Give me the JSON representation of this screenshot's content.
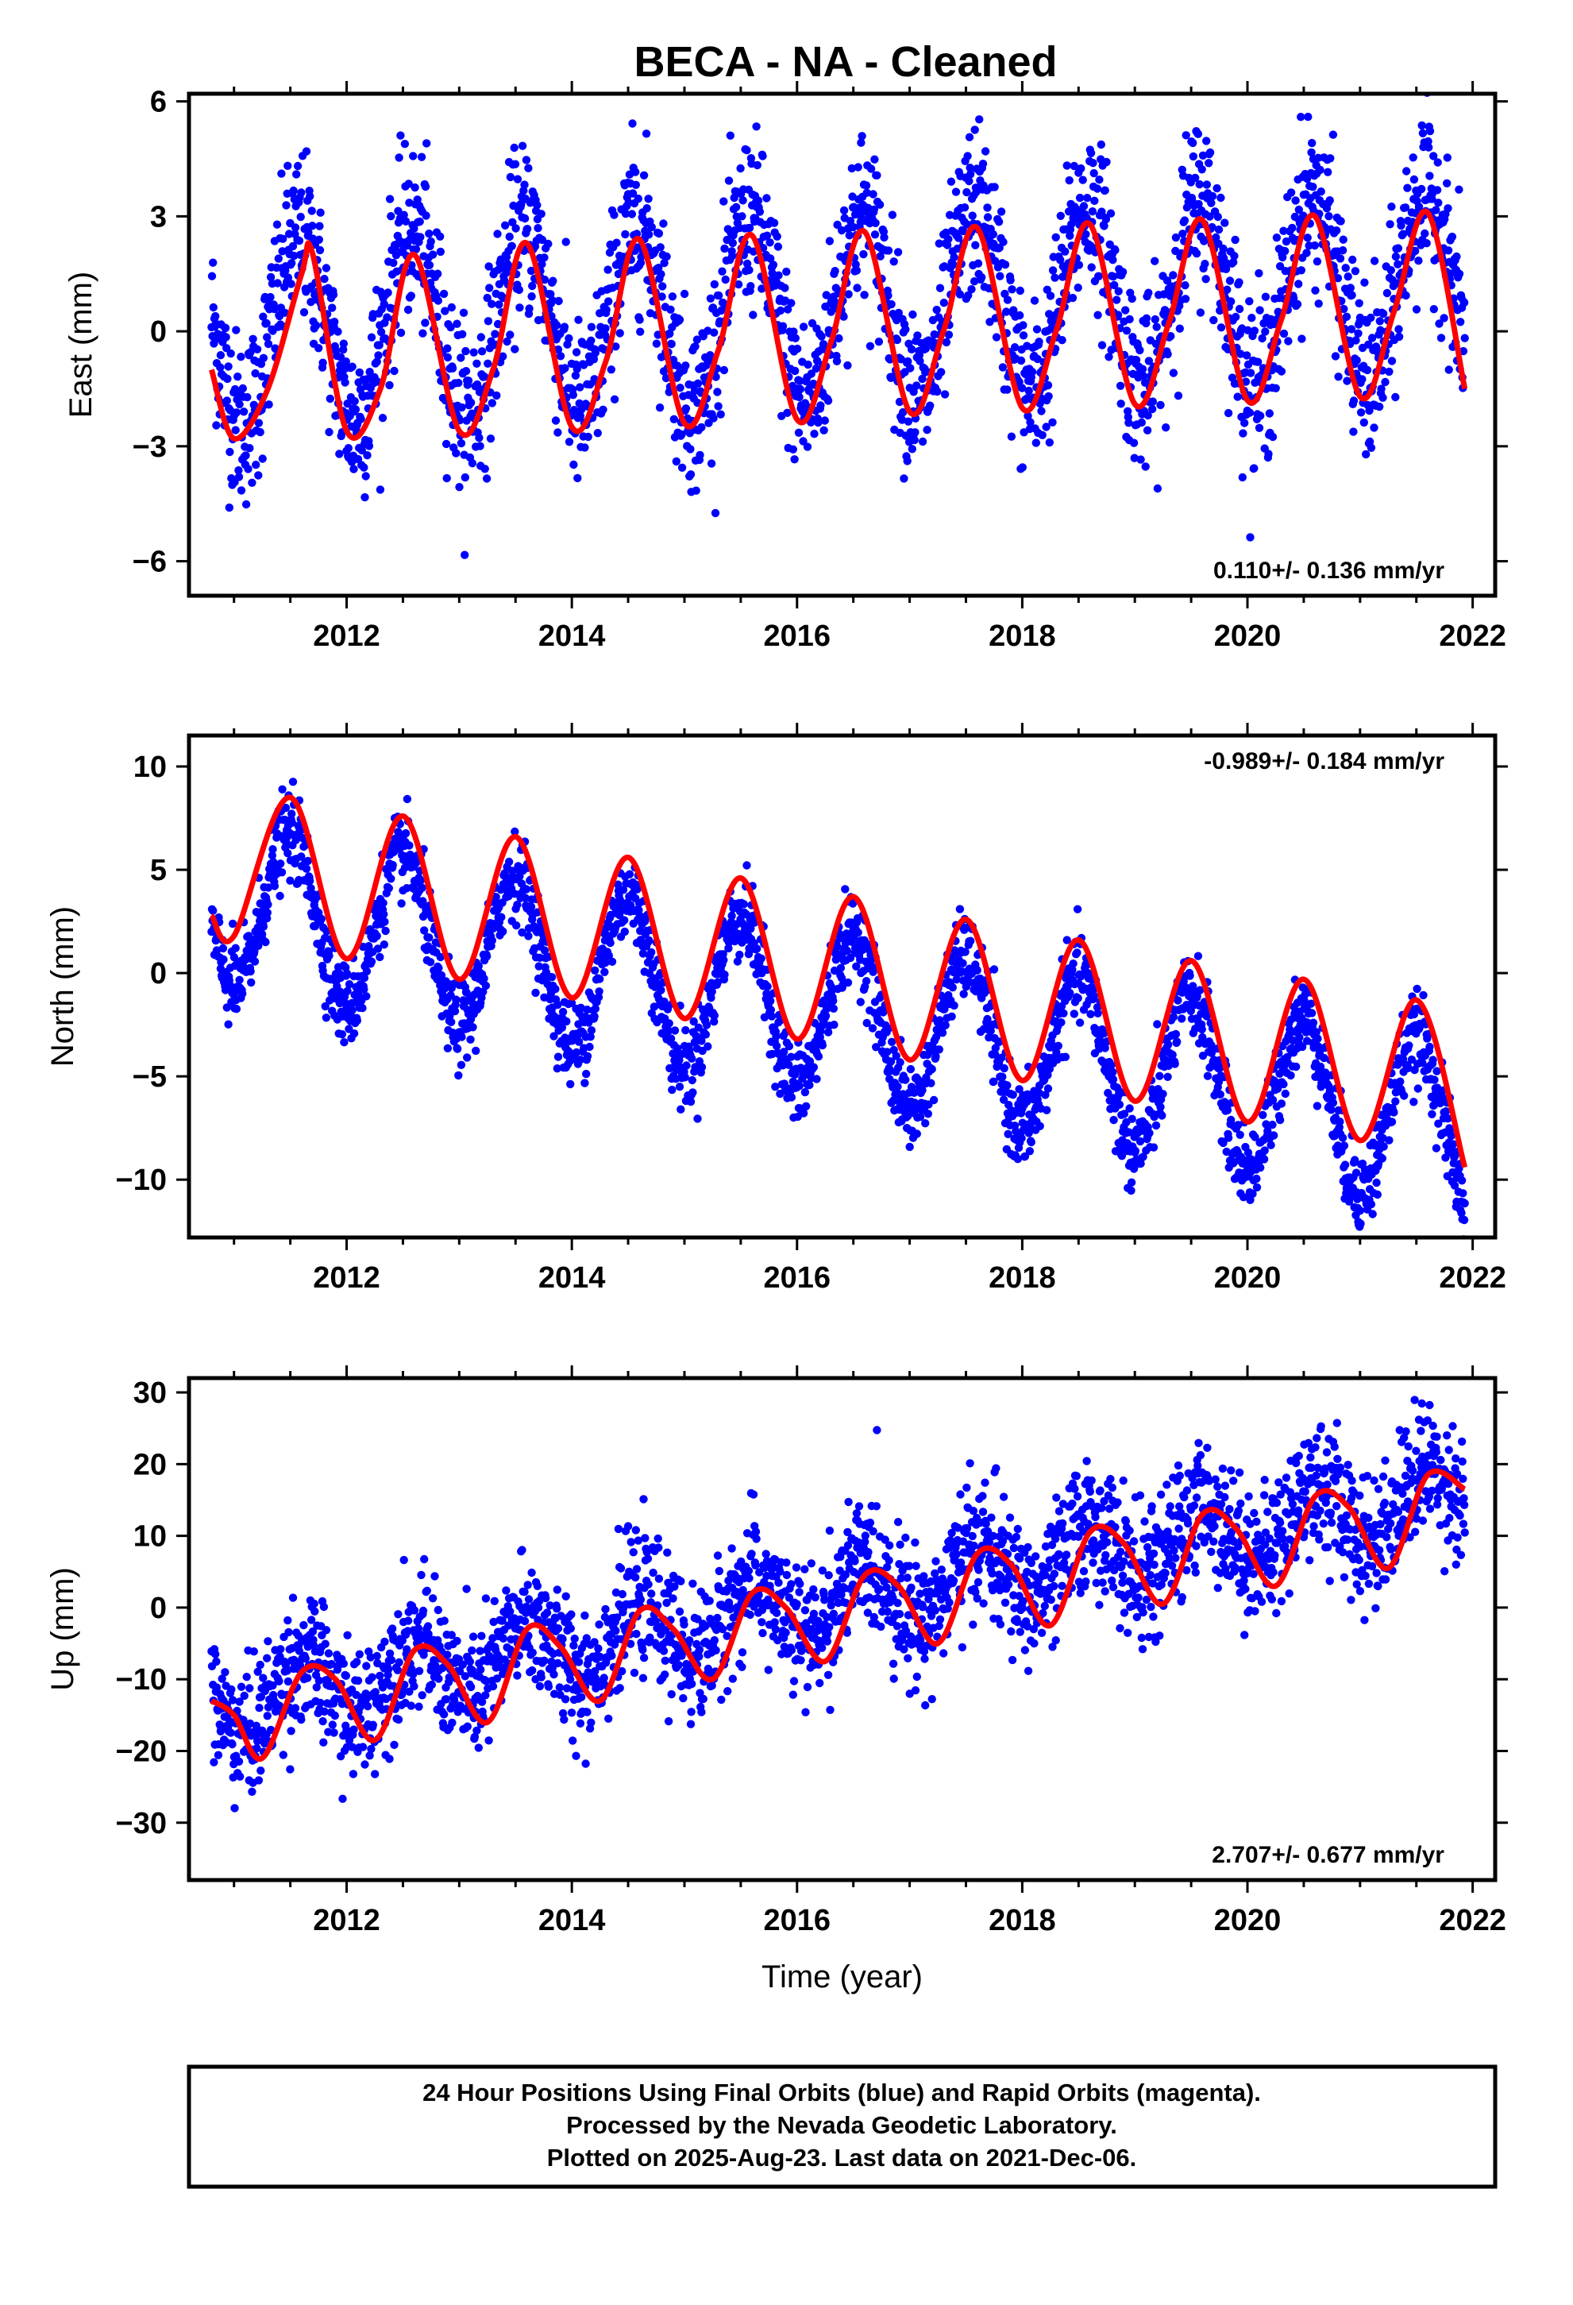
{
  "title": "BECA  - NA - Cleaned",
  "footer": {
    "line1": "24 Hour Positions Using Final Orbits (blue) and Rapid Orbits (magenta).",
    "line2": "Processed by the Nevada Geodetic Laboratory.",
    "line3": "Plotted on 2025-Aug-23. Last data on 2021-Dec-06."
  },
  "colors": {
    "points": "#0000ff",
    "fit": "#ff0000",
    "frame": "#000000"
  },
  "chart_data": [
    {
      "type": "scatter",
      "ylabel": "East (mm)",
      "xlabel": "",
      "rate_text": "0.110+/- 0.136 mm/yr",
      "rate_position": "bottom-right",
      "xlim": [
        2010.6,
        2022.2
      ],
      "ylim": [
        -6.9,
        6.2
      ],
      "xticks": [
        2012,
        2014,
        2016,
        2018,
        2020,
        2022
      ],
      "yticks": [
        -6,
        -3,
        0,
        3,
        6
      ],
      "ytick_labels": [
        "−6",
        "−3",
        "0",
        "3",
        "6"
      ],
      "data_start": 2010.8,
      "data_end": 2021.93,
      "model": {
        "trend_mm_per_yr": 0.11,
        "offset_mm": 0.0,
        "annual_amplitude_mm": 2.4,
        "annual_peak_year_fraction": 0.58,
        "scatter_sd_mm": 1.1
      },
      "fit_points": [
        [
          2010.8,
          -1.0
        ],
        [
          2011.0,
          -2.8
        ],
        [
          2011.3,
          -1.5
        ],
        [
          2011.6,
          1.5
        ],
        [
          2011.7,
          2.0
        ],
        [
          2012.0,
          -2.6
        ],
        [
          2012.3,
          -1.5
        ],
        [
          2012.6,
          2.0
        ],
        [
          2013.0,
          -2.6
        ],
        [
          2013.3,
          -1.0
        ],
        [
          2013.6,
          2.3
        ],
        [
          2014.0,
          -2.5
        ],
        [
          2014.3,
          -0.8
        ],
        [
          2014.6,
          2.4
        ],
        [
          2015.0,
          -2.4
        ],
        [
          2015.3,
          -0.5
        ],
        [
          2015.6,
          2.5
        ],
        [
          2016.0,
          -2.3
        ],
        [
          2016.3,
          -0.3
        ],
        [
          2016.6,
          2.6
        ],
        [
          2017.0,
          -2.1
        ],
        [
          2017.3,
          0.0
        ],
        [
          2017.6,
          2.7
        ],
        [
          2018.0,
          -2.0
        ],
        [
          2018.3,
          0.0
        ],
        [
          2018.6,
          2.8
        ],
        [
          2019.0,
          -1.9
        ],
        [
          2019.3,
          0.2
        ],
        [
          2019.6,
          2.9
        ],
        [
          2020.0,
          -1.8
        ],
        [
          2020.3,
          0.3
        ],
        [
          2020.6,
          3.0
        ],
        [
          2021.0,
          -1.7
        ],
        [
          2021.3,
          0.5
        ],
        [
          2021.6,
          3.1
        ],
        [
          2021.93,
          -1.5
        ]
      ]
    },
    {
      "type": "scatter",
      "ylabel": "North (mm)",
      "xlabel": "",
      "rate_text": "-0.989+/- 0.184 mm/yr",
      "rate_position": "top-right",
      "xlim": [
        2010.6,
        2022.2
      ],
      "ylim": [
        -12.8,
        11.5
      ],
      "xticks": [
        2012,
        2014,
        2016,
        2018,
        2020,
        2022
      ],
      "yticks": [
        -10,
        -5,
        0,
        5,
        10
      ],
      "ytick_labels": [
        "−10",
        "−5",
        "0",
        "5",
        "10"
      ],
      "data_start": 2010.8,
      "data_end": 2021.93,
      "model": {
        "trend_mm_per_yr": -0.989,
        "offset_mm": 3.5,
        "annual_amplitude_mm": 3.9,
        "annual_peak_year_fraction": 0.5,
        "scatter_sd_mm": 1.0
      },
      "fit_points": [
        [
          2010.8,
          2.8
        ],
        [
          2011.0,
          1.8
        ],
        [
          2011.5,
          8.5
        ],
        [
          2012.0,
          0.7
        ],
        [
          2012.5,
          7.6
        ],
        [
          2013.0,
          -0.3
        ],
        [
          2013.5,
          6.6
        ],
        [
          2014.0,
          -1.2
        ],
        [
          2014.5,
          5.6
        ],
        [
          2015.0,
          -2.2
        ],
        [
          2015.5,
          4.6
        ],
        [
          2016.0,
          -3.2
        ],
        [
          2016.5,
          3.7
        ],
        [
          2017.0,
          -4.2
        ],
        [
          2017.5,
          2.6
        ],
        [
          2018.0,
          -5.2
        ],
        [
          2018.5,
          1.6
        ],
        [
          2019.0,
          -6.2
        ],
        [
          2019.5,
          0.6
        ],
        [
          2020.0,
          -7.2
        ],
        [
          2020.5,
          -0.3
        ],
        [
          2021.0,
          -8.1
        ],
        [
          2021.5,
          -1.3
        ],
        [
          2021.93,
          -9.4
        ]
      ]
    },
    {
      "type": "scatter",
      "ylabel": "Up (mm)",
      "xlabel": "Time (year)",
      "rate_text": "2.707+/- 0.677 mm/yr",
      "rate_position": "bottom-right",
      "xlim": [
        2010.6,
        2022.2
      ],
      "ylim": [
        -38,
        32
      ],
      "xticks": [
        2012,
        2014,
        2016,
        2018,
        2020,
        2022
      ],
      "yticks": [
        -30,
        -20,
        -10,
        0,
        10,
        20,
        30
      ],
      "ytick_labels": [
        "−30",
        "−20",
        "−10",
        "0",
        "10",
        "20",
        "30"
      ],
      "data_start": 2010.8,
      "data_end": 2021.93,
      "model": {
        "trend_mm_per_yr": 2.707,
        "offset_mm": -14.0,
        "annual_amplitude_mm": 4.5,
        "annual_peak_year_fraction": 0.6,
        "scatter_sd_mm": 4.5
      },
      "fit_points": [
        [
          2010.8,
          -13
        ],
        [
          2011.0,
          -15
        ],
        [
          2011.25,
          -21
        ],
        [
          2011.6,
          -9
        ],
        [
          2011.9,
          -10
        ],
        [
          2012.25,
          -18.5
        ],
        [
          2012.6,
          -6
        ],
        [
          2012.9,
          -8
        ],
        [
          2013.25,
          -16
        ],
        [
          2013.6,
          -3
        ],
        [
          2013.9,
          -5.5
        ],
        [
          2014.25,
          -13
        ],
        [
          2014.6,
          -0.5
        ],
        [
          2014.9,
          -3
        ],
        [
          2015.25,
          -10
        ],
        [
          2015.6,
          2
        ],
        [
          2015.9,
          0
        ],
        [
          2016.25,
          -7.5
        ],
        [
          2016.6,
          4.5
        ],
        [
          2016.9,
          3
        ],
        [
          2017.25,
          -5
        ],
        [
          2017.6,
          7.5
        ],
        [
          2017.9,
          6
        ],
        [
          2018.25,
          -2.5
        ],
        [
          2018.6,
          10.5
        ],
        [
          2018.9,
          9
        ],
        [
          2019.25,
          0.5
        ],
        [
          2019.6,
          13
        ],
        [
          2019.9,
          11
        ],
        [
          2020.25,
          3
        ],
        [
          2020.6,
          15.5
        ],
        [
          2020.9,
          14
        ],
        [
          2021.25,
          5.5
        ],
        [
          2021.6,
          18.5
        ],
        [
          2021.93,
          16.5
        ]
      ]
    }
  ]
}
